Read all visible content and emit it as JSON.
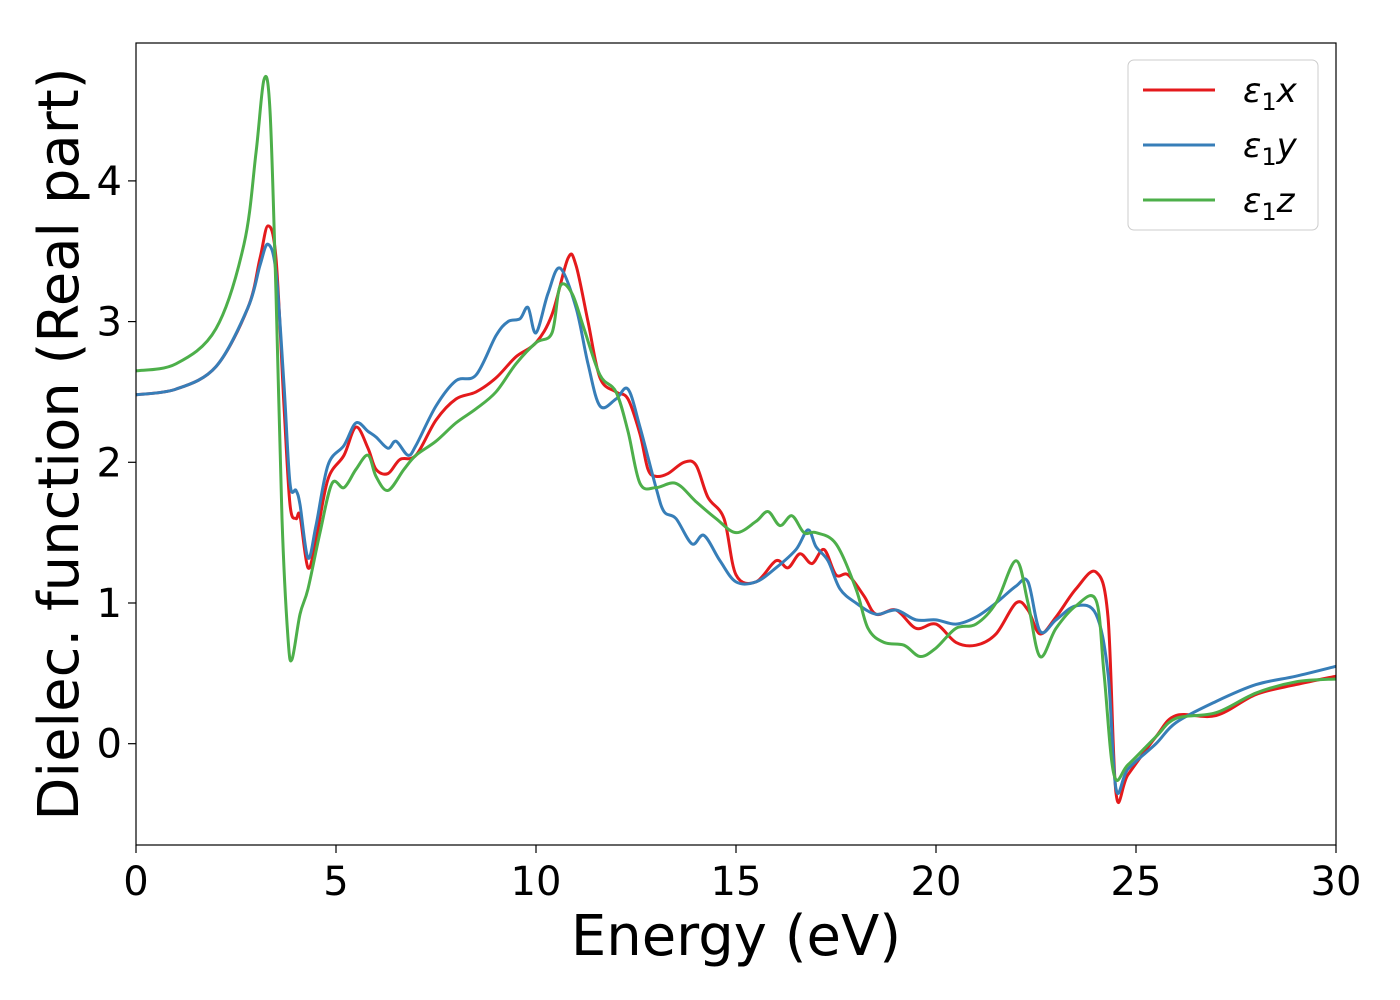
{
  "chart_data": {
    "type": "line",
    "xlabel": "Energy (eV)",
    "ylabel": "Dielec. function (Real part)",
    "xlim": [
      0,
      30
    ],
    "ylim": [
      -0.72,
      4.98
    ],
    "xticks": [
      0,
      5,
      10,
      15,
      20,
      25,
      30
    ],
    "yticks": [
      0,
      1,
      2,
      3,
      4
    ],
    "grid": false,
    "legend_position": "top-right",
    "series": [
      {
        "name": "x",
        "label_symbol": "ε",
        "label_subscript": "1",
        "color": "#e41a1c",
        "points": [
          [
            0,
            2.48
          ],
          [
            1,
            2.52
          ],
          [
            2,
            2.68
          ],
          [
            2.8,
            3.1
          ],
          [
            3.1,
            3.45
          ],
          [
            3.3,
            3.68
          ],
          [
            3.5,
            3.45
          ],
          [
            3.7,
            2.4
          ],
          [
            3.85,
            1.7
          ],
          [
            4.0,
            1.6
          ],
          [
            4.1,
            1.62
          ],
          [
            4.3,
            1.25
          ],
          [
            4.5,
            1.45
          ],
          [
            4.8,
            1.88
          ],
          [
            5.2,
            2.05
          ],
          [
            5.5,
            2.25
          ],
          [
            5.8,
            2.1
          ],
          [
            6.0,
            1.95
          ],
          [
            6.3,
            1.92
          ],
          [
            6.6,
            2.02
          ],
          [
            7.0,
            2.05
          ],
          [
            7.5,
            2.3
          ],
          [
            8.0,
            2.45
          ],
          [
            8.5,
            2.5
          ],
          [
            9.0,
            2.6
          ],
          [
            9.5,
            2.75
          ],
          [
            10.0,
            2.85
          ],
          [
            10.4,
            3.05
          ],
          [
            10.8,
            3.45
          ],
          [
            11.0,
            3.4
          ],
          [
            11.3,
            3.0
          ],
          [
            11.6,
            2.6
          ],
          [
            12.0,
            2.5
          ],
          [
            12.3,
            2.45
          ],
          [
            12.6,
            2.2
          ],
          [
            12.8,
            1.95
          ],
          [
            13.0,
            1.9
          ],
          [
            13.3,
            1.92
          ],
          [
            13.7,
            2.0
          ],
          [
            14.0,
            1.98
          ],
          [
            14.3,
            1.75
          ],
          [
            14.7,
            1.6
          ],
          [
            15.0,
            1.2
          ],
          [
            15.5,
            1.15
          ],
          [
            16.0,
            1.3
          ],
          [
            16.3,
            1.25
          ],
          [
            16.6,
            1.35
          ],
          [
            16.9,
            1.28
          ],
          [
            17.2,
            1.38
          ],
          [
            17.5,
            1.2
          ],
          [
            17.8,
            1.2
          ],
          [
            18.2,
            1.05
          ],
          [
            18.5,
            0.92
          ],
          [
            19.0,
            0.95
          ],
          [
            19.5,
            0.82
          ],
          [
            20.0,
            0.85
          ],
          [
            20.5,
            0.72
          ],
          [
            21.0,
            0.7
          ],
          [
            21.5,
            0.78
          ],
          [
            22.0,
            1.0
          ],
          [
            22.3,
            0.95
          ],
          [
            22.6,
            0.78
          ],
          [
            23.0,
            0.9
          ],
          [
            23.5,
            1.1
          ],
          [
            24.0,
            1.22
          ],
          [
            24.3,
            0.9
          ],
          [
            24.5,
            -0.35
          ],
          [
            24.8,
            -0.22
          ],
          [
            25.5,
            0.05
          ],
          [
            26.0,
            0.2
          ],
          [
            27.0,
            0.2
          ],
          [
            28.0,
            0.35
          ],
          [
            29.0,
            0.42
          ],
          [
            30.0,
            0.48
          ]
        ]
      },
      {
        "name": "y",
        "label_symbol": "ε",
        "label_subscript": "1",
        "color": "#377eb8",
        "points": [
          [
            0,
            2.48
          ],
          [
            1,
            2.52
          ],
          [
            2,
            2.68
          ],
          [
            2.8,
            3.1
          ],
          [
            3.1,
            3.4
          ],
          [
            3.3,
            3.55
          ],
          [
            3.5,
            3.35
          ],
          [
            3.7,
            2.55
          ],
          [
            3.85,
            1.85
          ],
          [
            4.0,
            1.8
          ],
          [
            4.1,
            1.7
          ],
          [
            4.3,
            1.32
          ],
          [
            4.5,
            1.55
          ],
          [
            4.8,
            1.98
          ],
          [
            5.2,
            2.12
          ],
          [
            5.5,
            2.28
          ],
          [
            5.8,
            2.22
          ],
          [
            6.0,
            2.18
          ],
          [
            6.3,
            2.1
          ],
          [
            6.5,
            2.15
          ],
          [
            6.8,
            2.05
          ],
          [
            7.0,
            2.12
          ],
          [
            7.5,
            2.4
          ],
          [
            8.0,
            2.58
          ],
          [
            8.5,
            2.62
          ],
          [
            9.0,
            2.9
          ],
          [
            9.3,
            3.0
          ],
          [
            9.6,
            3.02
          ],
          [
            9.8,
            3.1
          ],
          [
            10.0,
            2.92
          ],
          [
            10.3,
            3.2
          ],
          [
            10.6,
            3.38
          ],
          [
            11.0,
            3.1
          ],
          [
            11.3,
            2.7
          ],
          [
            11.6,
            2.4
          ],
          [
            12.0,
            2.45
          ],
          [
            12.3,
            2.52
          ],
          [
            12.6,
            2.25
          ],
          [
            13.0,
            1.82
          ],
          [
            13.2,
            1.65
          ],
          [
            13.5,
            1.6
          ],
          [
            13.9,
            1.42
          ],
          [
            14.2,
            1.48
          ],
          [
            14.6,
            1.3
          ],
          [
            15.0,
            1.15
          ],
          [
            15.5,
            1.15
          ],
          [
            16.0,
            1.25
          ],
          [
            16.5,
            1.38
          ],
          [
            16.8,
            1.52
          ],
          [
            17.0,
            1.4
          ],
          [
            17.3,
            1.3
          ],
          [
            17.6,
            1.1
          ],
          [
            18.0,
            1.0
          ],
          [
            18.5,
            0.92
          ],
          [
            19.0,
            0.95
          ],
          [
            19.5,
            0.88
          ],
          [
            20.0,
            0.88
          ],
          [
            20.5,
            0.85
          ],
          [
            21.0,
            0.9
          ],
          [
            21.5,
            1.0
          ],
          [
            22.0,
            1.12
          ],
          [
            22.3,
            1.15
          ],
          [
            22.6,
            0.8
          ],
          [
            23.0,
            0.88
          ],
          [
            23.5,
            0.98
          ],
          [
            24.0,
            0.92
          ],
          [
            24.3,
            0.5
          ],
          [
            24.5,
            -0.32
          ],
          [
            24.8,
            -0.18
          ],
          [
            25.5,
            0.0
          ],
          [
            26.0,
            0.15
          ],
          [
            27.0,
            0.3
          ],
          [
            28.0,
            0.42
          ],
          [
            29.0,
            0.48
          ],
          [
            30.0,
            0.55
          ]
        ]
      },
      {
        "name": "z",
        "label_symbol": "ε",
        "label_subscript": "1",
        "color": "#4daf4a",
        "points": [
          [
            0,
            2.65
          ],
          [
            1,
            2.7
          ],
          [
            2,
            2.95
          ],
          [
            2.7,
            3.55
          ],
          [
            3.0,
            4.2
          ],
          [
            3.2,
            4.72
          ],
          [
            3.35,
            4.5
          ],
          [
            3.5,
            3.2
          ],
          [
            3.65,
            1.6
          ],
          [
            3.8,
            0.75
          ],
          [
            3.9,
            0.6
          ],
          [
            4.1,
            0.92
          ],
          [
            4.3,
            1.1
          ],
          [
            4.6,
            1.5
          ],
          [
            4.9,
            1.85
          ],
          [
            5.2,
            1.82
          ],
          [
            5.5,
            1.95
          ],
          [
            5.8,
            2.05
          ],
          [
            6.0,
            1.9
          ],
          [
            6.3,
            1.8
          ],
          [
            6.7,
            1.95
          ],
          [
            7.0,
            2.05
          ],
          [
            7.5,
            2.15
          ],
          [
            8.0,
            2.28
          ],
          [
            8.5,
            2.38
          ],
          [
            9.0,
            2.5
          ],
          [
            9.5,
            2.7
          ],
          [
            10.0,
            2.85
          ],
          [
            10.4,
            2.92
          ],
          [
            10.6,
            3.25
          ],
          [
            10.9,
            3.2
          ],
          [
            11.2,
            2.95
          ],
          [
            11.6,
            2.62
          ],
          [
            12.0,
            2.5
          ],
          [
            12.3,
            2.22
          ],
          [
            12.6,
            1.85
          ],
          [
            13.0,
            1.82
          ],
          [
            13.5,
            1.85
          ],
          [
            14.0,
            1.72
          ],
          [
            14.5,
            1.6
          ],
          [
            15.0,
            1.5
          ],
          [
            15.5,
            1.58
          ],
          [
            15.8,
            1.65
          ],
          [
            16.1,
            1.55
          ],
          [
            16.4,
            1.62
          ],
          [
            16.7,
            1.5
          ],
          [
            17.0,
            1.5
          ],
          [
            17.5,
            1.42
          ],
          [
            18.0,
            1.1
          ],
          [
            18.3,
            0.82
          ],
          [
            18.7,
            0.72
          ],
          [
            19.2,
            0.7
          ],
          [
            19.6,
            0.62
          ],
          [
            20.0,
            0.68
          ],
          [
            20.5,
            0.82
          ],
          [
            21.0,
            0.85
          ],
          [
            21.5,
            1.0
          ],
          [
            22.0,
            1.3
          ],
          [
            22.3,
            1.0
          ],
          [
            22.6,
            0.62
          ],
          [
            23.0,
            0.82
          ],
          [
            23.5,
            0.98
          ],
          [
            24.0,
            1.02
          ],
          [
            24.2,
            0.5
          ],
          [
            24.45,
            -0.22
          ],
          [
            24.8,
            -0.15
          ],
          [
            25.5,
            0.05
          ],
          [
            26.0,
            0.18
          ],
          [
            27.0,
            0.22
          ],
          [
            28.0,
            0.36
          ],
          [
            29.0,
            0.44
          ],
          [
            30.0,
            0.46
          ]
        ]
      }
    ]
  }
}
